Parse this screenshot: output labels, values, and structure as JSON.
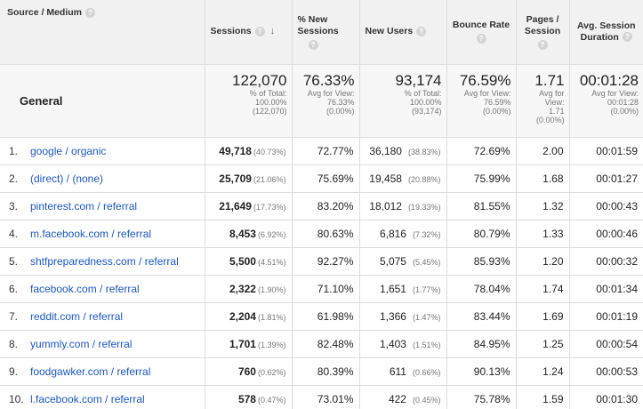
{
  "headers": {
    "source_medium": "Source / Medium",
    "sessions": "Sessions",
    "pct_new_sessions_1": "% New",
    "pct_new_sessions_2": "Sessions",
    "new_users": "New Users",
    "bounce_rate": "Bounce Rate",
    "pages_session_1": "Pages /",
    "pages_session_2": "Session",
    "avg_duration_1": "Avg. Session",
    "avg_duration_2": "Duration",
    "help_glyph": "?",
    "sort_glyph": "↓"
  },
  "totals": {
    "label": "General",
    "sessions": {
      "value": "122,070",
      "sub1": "% of Total:",
      "sub2": "100.00%",
      "sub3": "(122,070)"
    },
    "pct_new": {
      "value": "76.33%",
      "sub1": "Avg for View:",
      "sub2": "76.33%",
      "sub3": "(0.00%)"
    },
    "new_users": {
      "value": "93,174",
      "sub1": "% of Total:",
      "sub2": "100.00%",
      "sub3": "(93,174)"
    },
    "bounce": {
      "value": "76.59%",
      "sub1": "Avg for View:",
      "sub2": "76.59%",
      "sub3": "(0.00%)"
    },
    "pages": {
      "value": "1.71",
      "sub1": "Avg for",
      "sub2": "View:",
      "sub3": "1.71",
      "sub4": "(0.00%)"
    },
    "duration": {
      "value": "00:01:28",
      "sub1": "Avg for View:",
      "sub2": "00:01:28",
      "sub3": "(0.00%)"
    }
  },
  "rows": [
    {
      "rank": "1.",
      "source": "google / organic",
      "sessions": "49,718",
      "sessions_pct": "(40.73%)",
      "pct_new": "72.77%",
      "new_users": "36,180",
      "new_users_pct": "(38.83%)",
      "bounce": "72.69%",
      "pages": "2.00",
      "duration": "00:01:59"
    },
    {
      "rank": "2.",
      "source": "(direct) / (none)",
      "sessions": "25,709",
      "sessions_pct": "(21.06%)",
      "pct_new": "75.69%",
      "new_users": "19,458",
      "new_users_pct": "(20.88%)",
      "bounce": "75.99%",
      "pages": "1.68",
      "duration": "00:01:27"
    },
    {
      "rank": "3.",
      "source": "pinterest.com / referral",
      "sessions": "21,649",
      "sessions_pct": "(17.73%)",
      "pct_new": "83.20%",
      "new_users": "18,012",
      "new_users_pct": "(19.33%)",
      "bounce": "81.55%",
      "pages": "1.32",
      "duration": "00:00:43"
    },
    {
      "rank": "4.",
      "source": "m.facebook.com / referral",
      "sessions": "8,453",
      "sessions_pct": "(6.92%)",
      "pct_new": "80.63%",
      "new_users": "6,816",
      "new_users_pct": "(7.32%)",
      "bounce": "80.79%",
      "pages": "1.33",
      "duration": "00:00:46"
    },
    {
      "rank": "5.",
      "source": "shtfpreparedness.com / referral",
      "sessions": "5,500",
      "sessions_pct": "(4.51%)",
      "pct_new": "92.27%",
      "new_users": "5,075",
      "new_users_pct": "(5.45%)",
      "bounce": "85.93%",
      "pages": "1.20",
      "duration": "00:00:32"
    },
    {
      "rank": "6.",
      "source": "facebook.com / referral",
      "sessions": "2,322",
      "sessions_pct": "(1.90%)",
      "pct_new": "71.10%",
      "new_users": "1,651",
      "new_users_pct": "(1.77%)",
      "bounce": "78.04%",
      "pages": "1.74",
      "duration": "00:01:34"
    },
    {
      "rank": "7.",
      "source": "reddit.com / referral",
      "sessions": "2,204",
      "sessions_pct": "(1.81%)",
      "pct_new": "61.98%",
      "new_users": "1,366",
      "new_users_pct": "(1.47%)",
      "bounce": "83.44%",
      "pages": "1.69",
      "duration": "00:01:19"
    },
    {
      "rank": "8.",
      "source": "yummly.com / referral",
      "sessions": "1,701",
      "sessions_pct": "(1.39%)",
      "pct_new": "82.48%",
      "new_users": "1,403",
      "new_users_pct": "(1.51%)",
      "bounce": "84.95%",
      "pages": "1.25",
      "duration": "00:00:54"
    },
    {
      "rank": "9.",
      "source": "foodgawker.com / referral",
      "sessions": "760",
      "sessions_pct": "(0.62%)",
      "pct_new": "80.39%",
      "new_users": "611",
      "new_users_pct": "(0.66%)",
      "bounce": "90.13%",
      "pages": "1.24",
      "duration": "00:00:53"
    },
    {
      "rank": "10.",
      "source": "l.facebook.com / referral",
      "sessions": "578",
      "sessions_pct": "(0.47%)",
      "pct_new": "73.01%",
      "new_users": "422",
      "new_users_pct": "(0.45%)",
      "bounce": "75.78%",
      "pages": "1.59",
      "duration": "00:01:30"
    }
  ]
}
